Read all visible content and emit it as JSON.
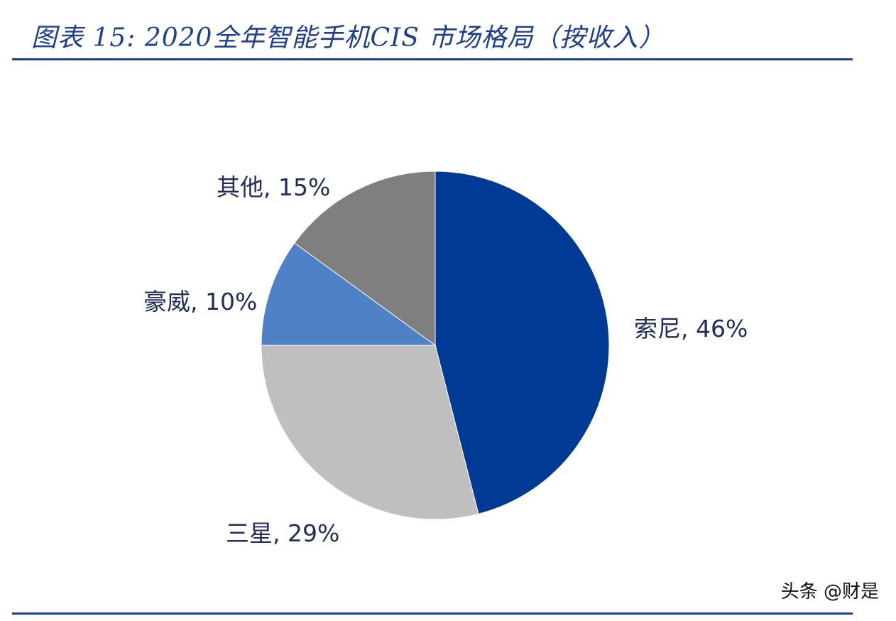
{
  "figure": {
    "title": "图表 15: 2020全年智能手机CIS 市场格局（按收入）"
  },
  "watermark": "头条 @财是",
  "chart_data": {
    "type": "pie",
    "title": "图表 15: 2020全年智能手机CIS 市场格局（按收入）",
    "slices": [
      {
        "name": "索尼",
        "value": 46,
        "label": "索尼, 46%",
        "color": "#003a94"
      },
      {
        "name": "三星",
        "value": 29,
        "label": "三星, 29%",
        "color": "#bfbfbf"
      },
      {
        "name": "豪威",
        "value": 10,
        "label": "豪威, 10%",
        "color": "#4f81c7"
      },
      {
        "name": "其他",
        "value": 15,
        "label": "其他, 15%",
        "color": "#7f7f7f"
      }
    ],
    "start": "12 o'clock",
    "direction": "clockwise",
    "legend": "none"
  }
}
